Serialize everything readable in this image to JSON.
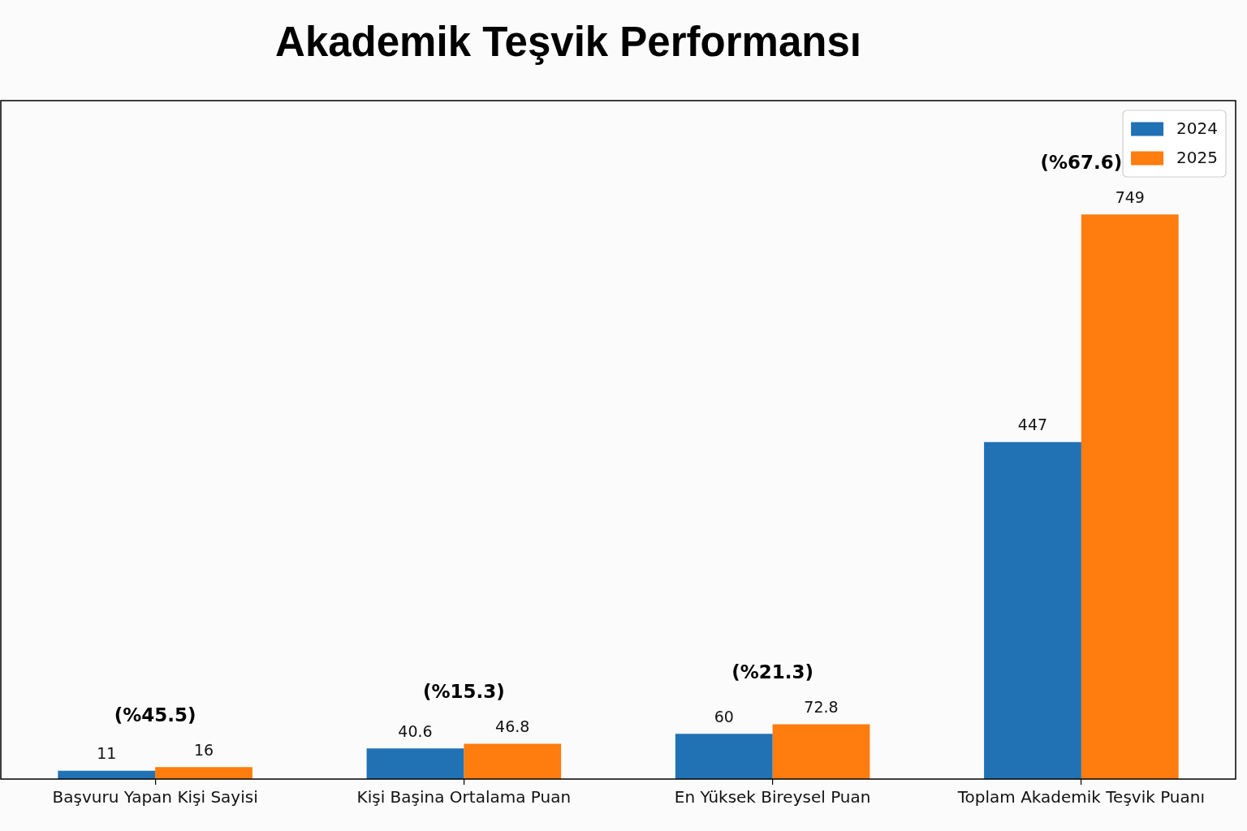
{
  "chart_data": {
    "type": "bar",
    "title": "Akademik Teşvik Performansı",
    "categories": [
      "Başvuru Yapan Kişi Sayisi",
      "Kişi Başina Ortalama Puan",
      "En Yüksek Bireysel Puan",
      "Toplam Akademik Teşvik Puanı"
    ],
    "series": [
      {
        "name": "2024",
        "color": "#2171b5",
        "values": [
          11,
          40.6,
          60,
          447
        ]
      },
      {
        "name": "2025",
        "color": "#ff7c0e",
        "values": [
          16,
          46.8,
          72.8,
          749
        ]
      }
    ],
    "data_labels": true,
    "annotations": [
      "(%45.5)",
      "(%15.3)",
      "(%21.3)",
      "(%67.6)"
    ],
    "legend": "top right",
    "tick_labels": "x"
  }
}
